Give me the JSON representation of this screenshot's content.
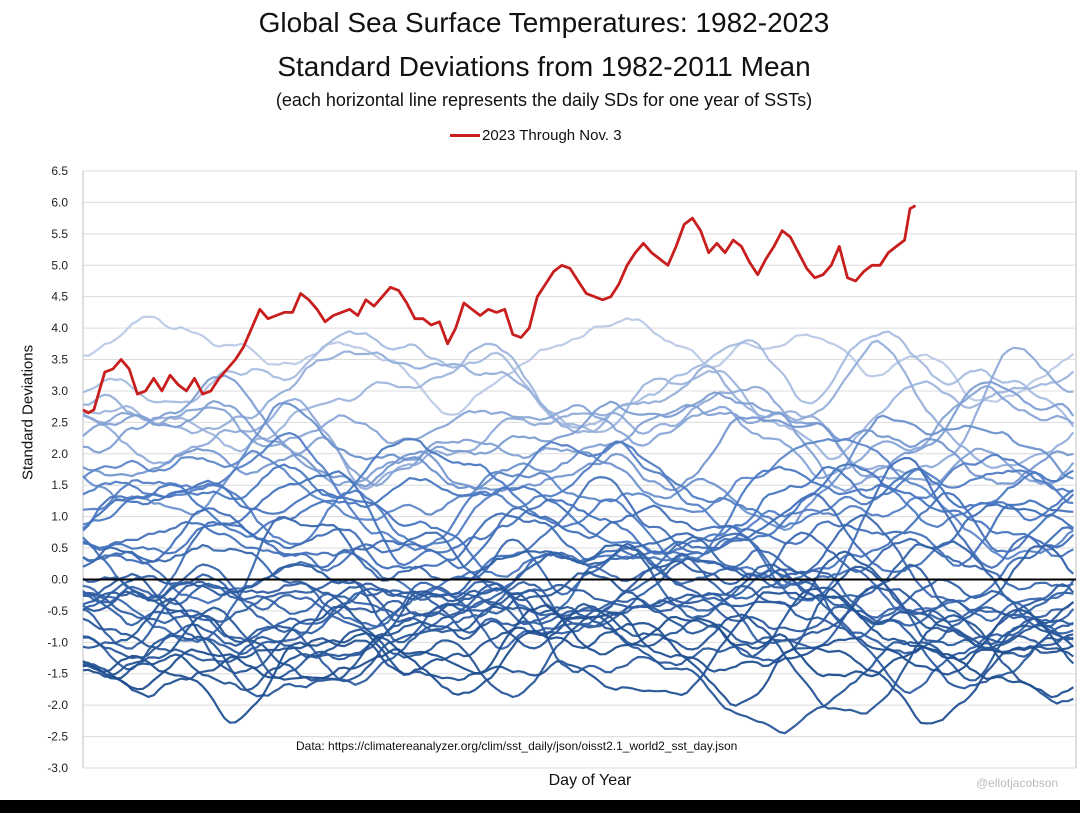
{
  "chart_data": {
    "type": "line",
    "title": "Global Sea Surface Temperatures: 1982-2023",
    "subtitle": "Standard Deviations from 1982-2011 Mean",
    "note": "(each horizontal line represents the daily SDs for one year of SSTs)",
    "legend": "2023 Through Nov. 3",
    "ylabel": "Standard Deviations",
    "xlabel": "Day of Year",
    "source": "Data: https://climatereanalyzer.org/clim/sst_daily/json/oisst2.1_world2_sst_day.json",
    "credit": "@ellotjacobson",
    "ylim": [
      -3.0,
      6.5
    ],
    "yticks": [
      "6.5",
      "6.0",
      "5.5",
      "5.0",
      "4.5",
      "4.0",
      "3.5",
      "3.0",
      "2.5",
      "2.0",
      "1.5",
      "1.0",
      "0.5",
      "0.0",
      "-0.5",
      "-1.0",
      "-1.5",
      "-2.0",
      "-2.5",
      "-3.0"
    ],
    "xlim": [
      1,
      366
    ],
    "highlight_series": {
      "name": "2023 Through Nov. 3",
      "color": "#c81e1e",
      "days": [
        1,
        3,
        5,
        7,
        9,
        12,
        15,
        18,
        21,
        24,
        27,
        30,
        33,
        36,
        39,
        42,
        45,
        48,
        51,
        54,
        57,
        60,
        63,
        66,
        69,
        72,
        75,
        78,
        81,
        84,
        87,
        90,
        93,
        96,
        99,
        102,
        105,
        108,
        111,
        114,
        117,
        120,
        123,
        126,
        129,
        132,
        135,
        138,
        141,
        144,
        147,
        150,
        153,
        156,
        159,
        162,
        165,
        168,
        171,
        174,
        177,
        180,
        183,
        186,
        189,
        192,
        195,
        198,
        201,
        204,
        207,
        210,
        213,
        216,
        219,
        222,
        225,
        228,
        231,
        234,
        237,
        240,
        243,
        246,
        249,
        252,
        255,
        258,
        261,
        264,
        267,
        270,
        273,
        276,
        279,
        282,
        285,
        288,
        291,
        294,
        297,
        300,
        303,
        305,
        307
      ],
      "values": [
        2.7,
        2.65,
        2.7,
        3.0,
        3.3,
        3.35,
        3.5,
        3.35,
        2.95,
        3.0,
        3.2,
        3.0,
        3.25,
        3.1,
        3.0,
        3.2,
        2.95,
        3.0,
        3.2,
        3.35,
        3.5,
        3.7,
        4.0,
        4.3,
        4.15,
        4.2,
        4.25,
        4.25,
        4.55,
        4.45,
        4.3,
        4.1,
        4.2,
        4.25,
        4.3,
        4.2,
        4.45,
        4.35,
        4.5,
        4.65,
        4.6,
        4.4,
        4.15,
        4.15,
        4.05,
        4.1,
        3.75,
        4.0,
        4.4,
        4.3,
        4.2,
        4.3,
        4.25,
        4.3,
        3.9,
        3.85,
        4.0,
        4.5,
        4.7,
        4.9,
        5.0,
        4.95,
        4.75,
        4.55,
        4.5,
        4.45,
        4.5,
        4.7,
        5.0,
        5.2,
        5.35,
        5.2,
        5.1,
        5.0,
        5.3,
        5.65,
        5.75,
        5.55,
        5.2,
        5.35,
        5.2,
        5.4,
        5.3,
        5.05,
        4.85,
        5.1,
        5.3,
        5.55,
        5.45,
        5.2,
        4.95,
        4.8,
        4.85,
        5.0,
        5.3,
        4.8,
        4.75,
        4.9,
        5.0,
        5.0,
        5.2,
        5.3,
        5.4,
        5.9,
        5.95
      ]
    },
    "reference_line": {
      "y": 0.0,
      "color": "#000000"
    },
    "palette": {
      "recent_years": "#1f4e8f",
      "middle_years": "#4a78c2",
      "early_years": "#b9c9e6",
      "zero_line": "#000000",
      "highlight": "#c81e1e"
    },
    "background_series_levels": [
      -1.3,
      -1.1,
      -1.4,
      -0.9,
      -1.2,
      -0.6,
      -1.0,
      -0.8,
      -0.5,
      -0.7,
      -0.4,
      -0.3,
      -0.9,
      -0.6,
      -0.2,
      -0.5,
      -0.1,
      0.1,
      -0.3,
      0.2,
      0.4,
      0.6,
      0.8,
      0.5,
      0.9,
      1.1,
      0.7,
      1.3,
      1.0,
      1.2,
      1.5,
      1.8,
      2.0,
      2.3,
      2.6,
      2.4,
      2.9,
      3.1,
      2.2,
      2.7,
      3.5
    ]
  }
}
